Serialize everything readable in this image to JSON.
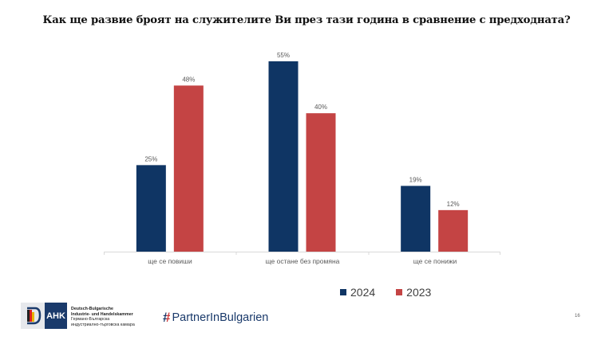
{
  "page": {
    "title": "Как ще развие броят на служителите Ви през тази година в сравнение с предходната?",
    "page_number": "16"
  },
  "chart_data": {
    "type": "bar",
    "title": "Как ще развие броят на служителите Ви през тази година в сравнение с предходната?",
    "categories": [
      "ще се повиши",
      "ще остане без промяна",
      "ще се понижи"
    ],
    "series": [
      {
        "name": "2024",
        "color": "#0f3564",
        "values": [
          25,
          55,
          19
        ],
        "labels": [
          "25%",
          "55%",
          "19%"
        ]
      },
      {
        "name": "2023",
        "color": "#c44444",
        "values": [
          48,
          40,
          12
        ],
        "labels": [
          "48%",
          "40%",
          "12%"
        ]
      }
    ],
    "xlabel": "",
    "ylabel": "",
    "ylim": [
      0,
      55
    ],
    "grid": false,
    "legend_position": "bottom",
    "unit": "%"
  },
  "legend": [
    {
      "label": "2024",
      "color": "#0f3564"
    },
    {
      "label": "2023",
      "color": "#c44444"
    }
  ],
  "footer": {
    "ahk": {
      "badge": "AHK",
      "line1": "Deutsch-Bulgarische",
      "line2": "Industrie- und Handelskammer",
      "line3": "Германо-Българска",
      "line4": "индустриално-търговска камара"
    },
    "partner": {
      "hash": "#",
      "name": "PartnerInBulgarien"
    }
  }
}
